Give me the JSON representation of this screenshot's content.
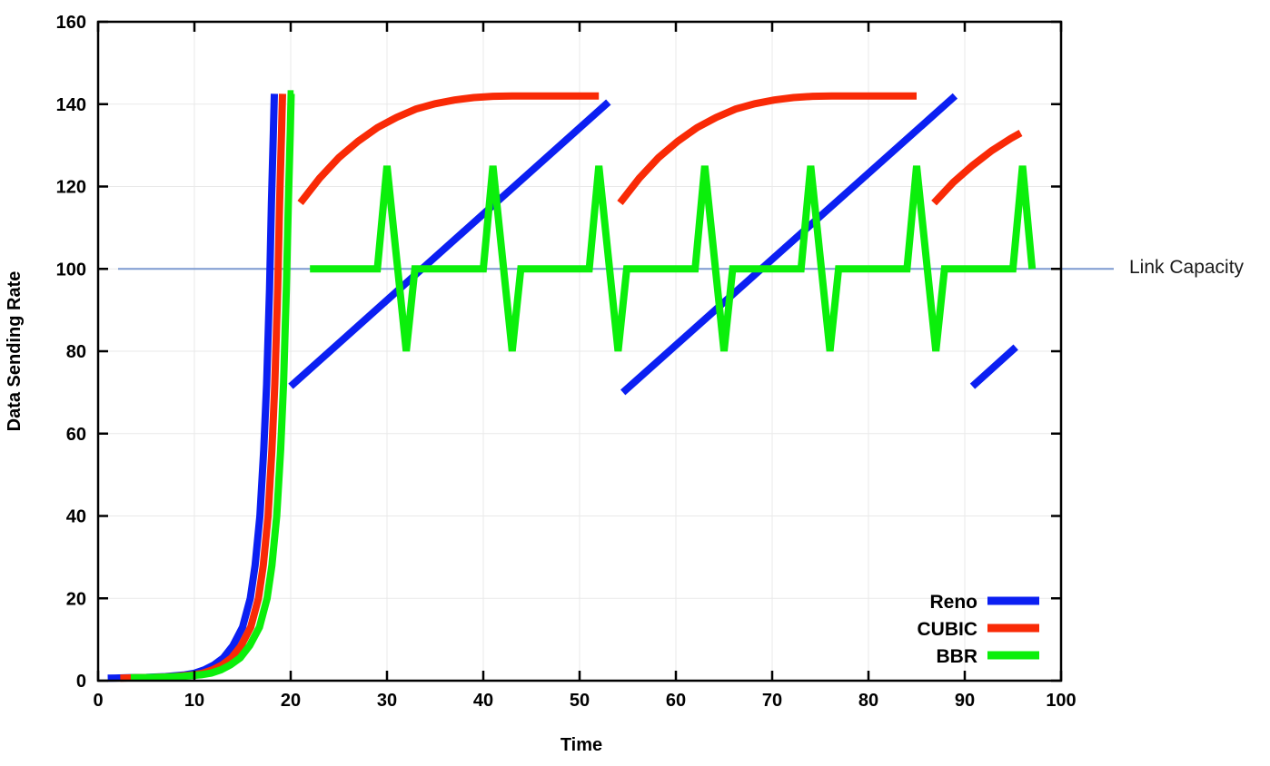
{
  "chart_data": {
    "type": "line",
    "title": "",
    "xlabel": "Time",
    "ylabel": "Data Sending Rate",
    "xlim": [
      0,
      100
    ],
    "ylim": [
      0,
      160
    ],
    "x_ticks": [
      0,
      10,
      20,
      30,
      40,
      50,
      60,
      70,
      80,
      90,
      100
    ],
    "y_ticks": [
      0,
      20,
      40,
      60,
      80,
      100,
      120,
      140,
      160
    ],
    "grid": true,
    "legend_position": "bottom-right",
    "link_capacity": {
      "label": "Link Capacity",
      "y": 100,
      "color": "#7d9ad0"
    },
    "axis_color": "#000000",
    "grid_color": "#e9e9e9",
    "series": [
      {
        "name": "Reno",
        "color": "#0b1ff2",
        "segments": [
          [
            [
              1,
              0.6
            ],
            [
              3,
              0.7
            ],
            [
              5,
              0.8
            ],
            [
              7,
              1.0
            ],
            [
              9,
              1.4
            ],
            [
              10,
              1.8
            ],
            [
              11,
              2.6
            ],
            [
              12,
              3.8
            ],
            [
              13,
              5.5
            ],
            [
              14,
              8.5
            ],
            [
              15,
              13
            ],
            [
              15.8,
              20
            ],
            [
              16.3,
              28
            ],
            [
              16.8,
              40
            ],
            [
              17.2,
              56
            ],
            [
              17.5,
              72
            ],
            [
              17.8,
              95
            ],
            [
              18.0,
              116
            ],
            [
              18.2,
              133
            ],
            [
              18.3,
              142.5
            ]
          ],
          [
            [
              20,
              71.5
            ],
            [
              53,
              140.5
            ]
          ],
          [
            [
              54.5,
              70
            ],
            [
              89,
              142
            ]
          ],
          [
            [
              90.8,
              71.5
            ],
            [
              95.3,
              81
            ]
          ]
        ]
      },
      {
        "name": "CUBIC",
        "color": "#f92a06",
        "segments": [
          [
            [
              2.3,
              0.6
            ],
            [
              3.85,
              0.7
            ],
            [
              5.85,
              0.8
            ],
            [
              7.85,
              1.0
            ],
            [
              9.85,
              1.4
            ],
            [
              10.85,
              1.8
            ],
            [
              11.85,
              2.6
            ],
            [
              12.85,
              3.8
            ],
            [
              13.85,
              5.5
            ],
            [
              14.85,
              8.5
            ],
            [
              15.85,
              13
            ],
            [
              16.65,
              20
            ],
            [
              17.15,
              28
            ],
            [
              17.65,
              40
            ],
            [
              18.05,
              56
            ],
            [
              18.35,
              72
            ],
            [
              18.65,
              95
            ],
            [
              18.85,
              116
            ],
            [
              19.05,
              133
            ],
            [
              19.15,
              142.5
            ]
          ],
          [
            [
              21,
              116
            ],
            [
              23,
              122
            ],
            [
              25,
              127
            ],
            [
              27,
              131
            ],
            [
              29,
              134.3
            ],
            [
              31,
              136.8
            ],
            [
              33,
              138.8
            ],
            [
              35,
              140.1
            ],
            [
              37,
              141
            ],
            [
              39,
              141.6
            ],
            [
              41,
              141.9
            ],
            [
              43,
              142
            ],
            [
              45,
              142
            ],
            [
              52,
              142
            ]
          ],
          [
            [
              54.2,
              116
            ],
            [
              56.2,
              122
            ],
            [
              58.2,
              127
            ],
            [
              60.2,
              131
            ],
            [
              62.2,
              134.3
            ],
            [
              64.2,
              136.8
            ],
            [
              66.2,
              138.8
            ],
            [
              68.2,
              140.1
            ],
            [
              70.2,
              141
            ],
            [
              72.2,
              141.6
            ],
            [
              74.2,
              141.9
            ],
            [
              76.2,
              142
            ],
            [
              78,
              142
            ],
            [
              85,
              142
            ]
          ],
          [
            [
              86.8,
              116
            ],
            [
              88.8,
              121
            ],
            [
              90.8,
              125.1
            ],
            [
              92.8,
              128.7
            ],
            [
              94.8,
              131.7
            ],
            [
              95.8,
              133
            ]
          ]
        ]
      },
      {
        "name": "BBR",
        "color": "#0bef0b",
        "segments": [
          [
            [
              3.4,
              0.7
            ],
            [
              4.75,
              0.75
            ],
            [
              6.75,
              0.85
            ],
            [
              8.75,
              1.05
            ],
            [
              10.75,
              1.45
            ],
            [
              11.75,
              1.85
            ],
            [
              12.75,
              2.65
            ],
            [
              13.75,
              3.85
            ],
            [
              14.75,
              5.55
            ],
            [
              15.75,
              8.55
            ],
            [
              16.75,
              13
            ],
            [
              17.55,
              20
            ],
            [
              18.05,
              28
            ],
            [
              18.55,
              40
            ],
            [
              18.95,
              56
            ],
            [
              19.25,
              72
            ],
            [
              19.55,
              95
            ],
            [
              19.75,
              116
            ],
            [
              19.95,
              133
            ],
            [
              20.05,
              142.5
            ],
            [
              20.3,
              142.5
            ]
          ],
          [
            [
              22,
              100
            ],
            [
              29,
              100
            ],
            [
              30,
              125
            ],
            [
              32,
              80
            ],
            [
              32.9,
              100
            ],
            [
              40,
              100
            ],
            [
              41,
              125
            ],
            [
              43,
              80
            ],
            [
              43.9,
              100
            ],
            [
              51,
              100
            ],
            [
              52,
              125
            ],
            [
              54,
              80
            ],
            [
              54.9,
              100
            ],
            [
              62,
              100
            ],
            [
              63,
              125
            ],
            [
              65,
              80
            ],
            [
              65.9,
              100
            ],
            [
              73,
              100
            ],
            [
              74,
              125
            ],
            [
              76,
              80
            ],
            [
              76.9,
              100
            ],
            [
              84,
              100
            ],
            [
              85,
              125
            ],
            [
              87,
              80
            ],
            [
              87.9,
              100
            ],
            [
              95,
              100
            ],
            [
              96,
              125
            ],
            [
              97,
              100
            ]
          ]
        ]
      }
    ]
  }
}
